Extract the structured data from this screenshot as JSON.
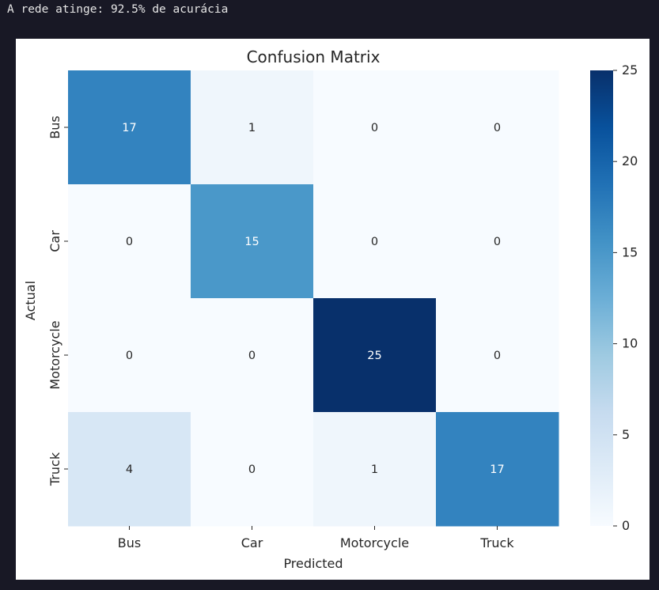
{
  "output": {
    "text": "A rede atinge: 92.5% de acurácia"
  },
  "chart_data": {
    "type": "heatmap",
    "title": "Confusion Matrix",
    "xlabel": "Predicted",
    "ylabel": "Actual",
    "x_categories": [
      "Bus",
      "Car",
      "Motorcycle",
      "Truck"
    ],
    "y_categories": [
      "Bus",
      "Car",
      "Motorcycle",
      "Truck"
    ],
    "values": [
      [
        17,
        1,
        0,
        0
      ],
      [
        0,
        15,
        0,
        0
      ],
      [
        0,
        0,
        25,
        0
      ],
      [
        4,
        0,
        1,
        17
      ]
    ],
    "colormap": "Blues",
    "vmin": 0,
    "vmax": 25,
    "colorbar_ticks": [
      0,
      5,
      10,
      15,
      20,
      25
    ]
  }
}
